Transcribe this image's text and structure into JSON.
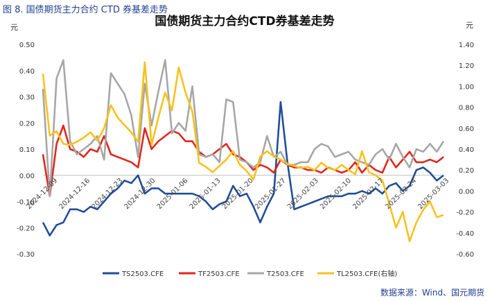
{
  "caption": "图 8.  国债期货主力合约 CTD 券基差走势",
  "source": "数据来源：Wind、国元期货",
  "chart_data": {
    "type": "line",
    "title": "国债期货主力合约CTD券基差走势",
    "left_unit": "元",
    "right_unit": "元",
    "left_axis": {
      "min": -0.3,
      "max": 0.5,
      "step": 0.1,
      "labels": [
        "0.50",
        "0.40",
        "0.30",
        "0.20",
        "0.10",
        "0.00",
        "-0.10",
        "-0.20",
        "-0.30"
      ]
    },
    "right_axis": {
      "min": -0.6,
      "max": 1.4,
      "step": 0.2,
      "labels": [
        "1.40",
        "1.20",
        "1.00",
        "0.80",
        "0.60",
        "0.40",
        "0.20",
        "0.00",
        "-0.20",
        "-0.40",
        "-0.60"
      ]
    },
    "x_labels": [
      "2024-12-09",
      "2024-12-16",
      "2024-12-23",
      "2024-12-30",
      "2025-01-06",
      "2025-01-13",
      "2025-01-20",
      "2025-01-27",
      "2025-02-03",
      "2025-02-10",
      "2025-02-17",
      "2025-02-24",
      "2025-03-03"
    ],
    "n_points": 60,
    "legend_position": "bottom",
    "series": [
      {
        "name": "TS2503.CFE",
        "color": "#1f4e99",
        "axis": "left",
        "values": [
          -0.18,
          -0.23,
          -0.19,
          -0.18,
          -0.13,
          -0.13,
          -0.14,
          -0.12,
          -0.13,
          -0.1,
          -0.07,
          -0.05,
          -0.02,
          -0.03,
          0.0,
          -0.07,
          -0.05,
          -0.05,
          -0.07,
          -0.07,
          -0.07,
          -0.07,
          -0.07,
          -0.08,
          -0.1,
          -0.13,
          -0.11,
          -0.1,
          -0.04,
          -0.08,
          -0.07,
          -0.12,
          -0.18,
          -0.12,
          -0.07,
          0.28,
          0.05,
          -0.13,
          -0.12,
          -0.11,
          -0.1,
          -0.09,
          -0.08,
          -0.08,
          -0.08,
          -0.07,
          -0.07,
          -0.06,
          -0.07,
          -0.05,
          -0.07,
          -0.04,
          -0.03,
          -0.06,
          -0.04,
          0.02,
          0.03,
          0.01,
          -0.02,
          0.0
        ]
      },
      {
        "name": "TF2503.CFE",
        "color": "#e0261d",
        "axis": "left",
        "values": [
          0.08,
          -0.08,
          0.12,
          0.19,
          0.1,
          0.09,
          0.07,
          0.1,
          0.09,
          0.15,
          0.08,
          0.07,
          0.06,
          0.05,
          0.03,
          0.18,
          0.1,
          0.13,
          0.15,
          0.17,
          0.16,
          0.13,
          0.13,
          0.09,
          0.07,
          0.08,
          0.1,
          0.12,
          0.08,
          0.07,
          0.05,
          0.02,
          0.04,
          0.03,
          0.01,
          0.06,
          0.04,
          0.03,
          0.03,
          0.02,
          0.02,
          0.01,
          0.03,
          0.02,
          0.01,
          0.02,
          0.05,
          0.01,
          0.04,
          0.02,
          0.01,
          0.07,
          0.03,
          0.06,
          0.09,
          0.05,
          0.05,
          0.06,
          0.05,
          0.07
        ]
      },
      {
        "name": "T2503.CFE",
        "color": "#a6a6a6",
        "axis": "left",
        "values": [
          0.33,
          -0.08,
          0.37,
          0.44,
          0.13,
          0.08,
          0.1,
          0.12,
          0.15,
          0.06,
          0.39,
          0.35,
          0.31,
          0.23,
          0.07,
          0.35,
          0.19,
          0.32,
          0.44,
          0.16,
          0.2,
          0.17,
          0.34,
          0.08,
          0.07,
          0.08,
          0.05,
          0.29,
          0.28,
          0.06,
          0.05,
          0.03,
          0.05,
          0.15,
          0.07,
          0.09,
          0.04,
          0.04,
          0.05,
          0.05,
          0.1,
          0.12,
          0.11,
          0.07,
          0.08,
          0.09,
          0.06,
          0.05,
          0.04,
          0.08,
          0.1,
          0.06,
          0.12,
          0.07,
          0.03,
          0.1,
          0.09,
          0.12,
          0.09,
          0.13
        ]
      },
      {
        "name": "TL2503.CFE(右轴)",
        "color": "#f7c21c",
        "axis": "right",
        "values": [
          1.12,
          0.53,
          0.57,
          0.45,
          0.44,
          0.47,
          0.51,
          0.56,
          0.48,
          0.6,
          0.82,
          0.7,
          0.63,
          0.56,
          0.47,
          1.23,
          0.44,
          0.7,
          0.94,
          0.77,
          1.18,
          0.94,
          0.76,
          0.27,
          0.23,
          0.18,
          0.24,
          0.3,
          0.38,
          0.25,
          0.19,
          0.11,
          0.33,
          0.38,
          0.33,
          0.3,
          0.26,
          0.24,
          0.22,
          0.23,
          0.2,
          0.27,
          0.22,
          0.2,
          0.25,
          0.2,
          0.16,
          0.38,
          0.18,
          0.15,
          0.1,
          -0.12,
          -0.35,
          -0.2,
          -0.48,
          -0.3,
          -0.18,
          -0.1,
          -0.25,
          -0.23
        ]
      }
    ]
  }
}
